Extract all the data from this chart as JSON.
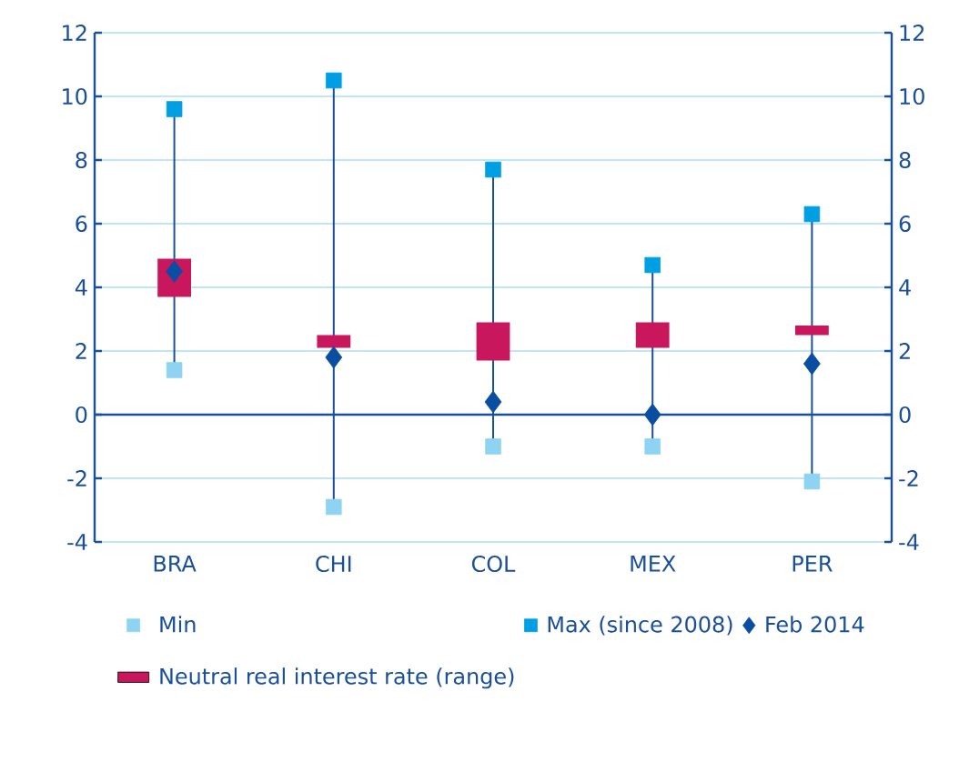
{
  "chart_data": {
    "type": "scatter",
    "categories": [
      "BRA",
      "CHI",
      "COL",
      "MEX",
      "PER"
    ],
    "series": [
      {
        "name": "Min",
        "color": "#8fd3f2",
        "marker": "square",
        "values": [
          1.4,
          -2.9,
          -1.0,
          -1.0,
          -2.1
        ]
      },
      {
        "name": "Max (since 2008)",
        "color": "#009fe3",
        "marker": "square",
        "values": [
          9.6,
          10.5,
          7.7,
          4.7,
          6.3
        ]
      },
      {
        "name": "Feb 2014",
        "color": "#0a4ea2",
        "marker": "diamond",
        "values": [
          4.5,
          1.8,
          0.4,
          0.0,
          1.6
        ]
      },
      {
        "name": "Neutral real interest rate (range)",
        "type": "bar",
        "color": "#c8175d",
        "base": [
          3.7,
          2.1,
          1.7,
          2.1,
          2.5
        ],
        "values": [
          1.2,
          0.4,
          1.2,
          0.8,
          0.3
        ]
      }
    ],
    "ylim": [
      -4,
      12
    ],
    "yticks": [
      -4,
      -2,
      0,
      2,
      4,
      6,
      8,
      10,
      12
    ],
    "y2lim": [
      -4,
      12
    ],
    "y2ticks": [
      -4,
      -2,
      0,
      2,
      4,
      6,
      8,
      10,
      12
    ],
    "ref_lines": [
      {
        "axis": "y",
        "value": 0,
        "color": "#1a4f9c"
      }
    ],
    "grid": "y",
    "legend": "bottom"
  }
}
